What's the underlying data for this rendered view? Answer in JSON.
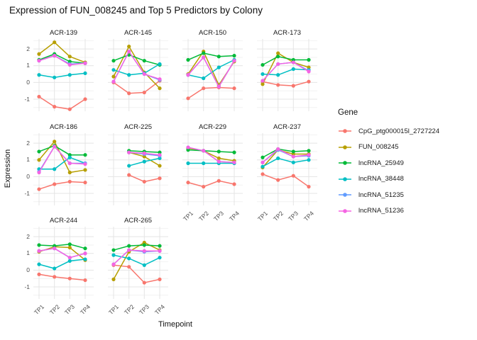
{
  "header": {
    "title": "Expression of FUN_008245 and Top 5 Predictors by Colony"
  },
  "chart_data": {
    "type": "line",
    "title": "Expression of FUN_008245 and Top 5 Predictors by Colony",
    "xlabel": "Timepoint",
    "ylabel": "Expression",
    "x_categories": [
      "TP1",
      "TP2",
      "TP3",
      "TP4"
    ],
    "y_ticks": [
      "2",
      "1",
      "0",
      "-1"
    ],
    "y_tick_values": [
      2,
      1,
      0,
      -1
    ],
    "ylim": [
      -1.72,
      2.6
    ],
    "grid": true,
    "legend": {
      "title": "Gene",
      "position": "right"
    },
    "series_meta": [
      {
        "name": "CpG_ptg000015l_2727224",
        "color": "#F8766D"
      },
      {
        "name": "FUN_008245",
        "color": "#B79F00"
      },
      {
        "name": "lncRNA_25949",
        "color": "#00BA38"
      },
      {
        "name": "lncRNA_38448",
        "color": "#00BFC4"
      },
      {
        "name": "lncRNA_51235",
        "color": "#619CFF"
      },
      {
        "name": "lncRNA_51236",
        "color": "#F564E3"
      }
    ],
    "facets": [
      {
        "label": "ACR-139",
        "show_x": false,
        "values": [
          [
            -0.85,
            -1.45,
            -1.6,
            -1.0
          ],
          [
            1.7,
            2.4,
            1.55,
            1.2
          ],
          [
            1.35,
            1.7,
            1.25,
            1.15
          ],
          [
            0.45,
            0.3,
            0.45,
            0.55
          ],
          [
            1.3,
            1.6,
            1.1,
            1.15
          ],
          [
            1.3,
            1.6,
            1.05,
            1.15
          ]
        ]
      },
      {
        "label": "ACR-145",
        "show_x": false,
        "values": [
          [
            0.0,
            -0.65,
            -0.6,
            0.1
          ],
          [
            0.35,
            2.15,
            0.6,
            -0.35
          ],
          [
            1.3,
            1.65,
            1.3,
            1.05
          ],
          [
            0.75,
            0.45,
            0.55,
            1.1
          ],
          [
            0.05,
            1.85,
            0.5,
            0.15
          ],
          [
            0.05,
            1.85,
            0.5,
            0.2
          ]
        ]
      },
      {
        "label": "ACR-150",
        "show_x": false,
        "values": [
          [
            -0.95,
            -0.35,
            -0.3,
            -0.35
          ],
          [
            0.5,
            1.85,
            -0.15,
            1.25
          ],
          [
            1.35,
            1.75,
            1.55,
            1.6
          ],
          [
            0.45,
            0.25,
            0.9,
            1.35
          ],
          [
            0.45,
            1.5,
            -0.25,
            1.3
          ],
          [
            0.45,
            1.5,
            -0.25,
            1.3
          ]
        ]
      },
      {
        "label": "ACR-173",
        "show_x": false,
        "values": [
          [
            0.05,
            -0.15,
            -0.2,
            0.05
          ],
          [
            -0.1,
            1.75,
            1.2,
            0.9
          ],
          [
            1.05,
            1.55,
            1.35,
            1.35
          ],
          [
            0.5,
            0.45,
            0.8,
            0.75
          ],
          [
            0.1,
            1.1,
            1.2,
            0.7
          ],
          [
            0.1,
            1.1,
            1.2,
            0.65
          ]
        ]
      },
      {
        "label": "ACR-186",
        "show_x": false,
        "values": [
          [
            -0.75,
            -0.45,
            -0.3,
            -0.35
          ],
          [
            1.0,
            2.1,
            0.25,
            0.4
          ],
          [
            1.5,
            1.85,
            1.3,
            1.3
          ],
          [
            0.45,
            0.45,
            1.15,
            0.8
          ],
          [
            0.3,
            1.8,
            0.8,
            0.8
          ],
          [
            0.25,
            1.8,
            0.8,
            0.75
          ]
        ]
      },
      {
        "label": "ACR-225",
        "show_x": false,
        "values": [
          [
            null,
            0.1,
            -0.3,
            -0.1
          ],
          [
            null,
            1.45,
            1.2,
            0.65
          ],
          [
            null,
            1.55,
            1.5,
            1.45
          ],
          [
            null,
            0.65,
            0.9,
            1.1
          ],
          [
            null,
            1.45,
            1.35,
            1.25
          ],
          [
            null,
            1.45,
            1.4,
            1.3
          ]
        ]
      },
      {
        "label": "ACR-229",
        "show_x": true,
        "values": [
          [
            -0.35,
            -0.6,
            -0.25,
            -0.45
          ],
          [
            1.7,
            1.55,
            1.1,
            0.95
          ],
          [
            1.6,
            1.55,
            1.5,
            1.45
          ],
          [
            0.8,
            0.8,
            0.8,
            0.8
          ],
          [
            1.75,
            1.55,
            0.9,
            0.85
          ],
          [
            1.75,
            1.55,
            0.9,
            0.85
          ]
        ]
      },
      {
        "label": "ACR-237",
        "show_x": true,
        "values": [
          [
            0.15,
            -0.2,
            0.05,
            -0.6
          ],
          [
            0.55,
            1.6,
            1.35,
            1.35
          ],
          [
            1.15,
            1.65,
            1.5,
            1.55
          ],
          [
            0.6,
            1.1,
            0.85,
            1.0
          ],
          [
            0.85,
            1.6,
            1.2,
            1.25
          ],
          [
            0.85,
            1.65,
            1.2,
            1.3
          ]
        ]
      },
      {
        "label": "ACR-244",
        "show_x": true,
        "values": [
          [
            -0.25,
            -0.4,
            -0.5,
            -0.6
          ],
          [
            1.1,
            1.4,
            1.35,
            0.6
          ],
          [
            1.5,
            1.45,
            1.55,
            1.3
          ],
          [
            0.35,
            0.1,
            0.55,
            0.65
          ],
          [
            1.15,
            1.3,
            0.75,
            1.0
          ],
          [
            1.15,
            1.3,
            0.75,
            1.0
          ]
        ]
      },
      {
        "label": "ACR-265",
        "show_x": true,
        "values": [
          [
            0.3,
            0.2,
            -0.75,
            -0.55
          ],
          [
            -0.55,
            1.1,
            1.65,
            1.2
          ],
          [
            1.2,
            1.45,
            1.5,
            1.45
          ],
          [
            0.9,
            0.7,
            0.3,
            0.75
          ],
          [
            0.35,
            1.2,
            1.1,
            1.15
          ],
          [
            0.35,
            1.2,
            1.15,
            1.15
          ]
        ]
      }
    ]
  }
}
